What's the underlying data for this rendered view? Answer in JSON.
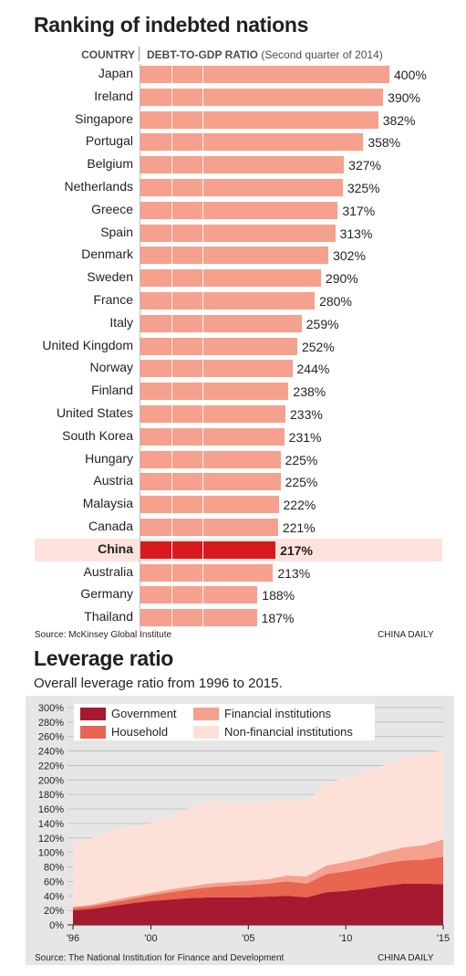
{
  "chart_data": [
    {
      "type": "bar",
      "title": "Ranking of indebted nations",
      "column_headers": {
        "country": "COUNTRY",
        "ratio_bold": "DEBT-TO-GDP RATIO",
        "ratio_note": "(Second quarter of 2014)"
      },
      "categories": [
        "Japan",
        "Ireland",
        "Singapore",
        "Portugal",
        "Belgium",
        "Netherlands",
        "Greece",
        "Spain",
        "Denmark",
        "Sweden",
        "France",
        "Italy",
        "United Kingdom",
        "Norway",
        "Finland",
        "United States",
        "South Korea",
        "Hungary",
        "Austria",
        "Malaysia",
        "Canada",
        "China",
        "Australia",
        "Germany",
        "Thailand"
      ],
      "values": [
        400,
        390,
        382,
        358,
        327,
        325,
        317,
        313,
        302,
        290,
        280,
        259,
        252,
        244,
        238,
        233,
        231,
        225,
        225,
        222,
        221,
        217,
        213,
        188,
        187
      ],
      "value_labels": [
        "400%",
        "390%",
        "382%",
        "358%",
        "327%",
        "325%",
        "317%",
        "313%",
        "302%",
        "290%",
        "280%",
        "259%",
        "252%",
        "244%",
        "238%",
        "233%",
        "231%",
        "225%",
        "225%",
        "222%",
        "221%",
        "217%",
        "213%",
        "188%",
        "187%"
      ],
      "highlight": "China",
      "source": "Source: McKinsey Global Institute",
      "credit": "CHINA DAILY",
      "colors": {
        "bar": "#f6a08e",
        "highlight_bar": "#d71920",
        "highlight_row": "#fde3dc"
      }
    },
    {
      "type": "area",
      "title": "Leverage ratio",
      "subtitle": "Overall leverage ratio from 1996 to 2015.",
      "x": [
        1996,
        1997,
        1998,
        1999,
        2000,
        2001,
        2002,
        2003,
        2004,
        2005,
        2006,
        2007,
        2008,
        2009,
        2010,
        2011,
        2012,
        2013,
        2014,
        2015
      ],
      "x_tick_labels": [
        "'96",
        "'00",
        "'05",
        "'10",
        "'15"
      ],
      "x_tick_values": [
        1996,
        2000,
        2005,
        2010,
        2015
      ],
      "y_tick_labels": [
        "0%",
        "20%",
        "40%",
        "60%",
        "80%",
        "100%",
        "120%",
        "140%",
        "160%",
        "180%",
        "200%",
        "220%",
        "240%",
        "260%",
        "280%",
        "300%"
      ],
      "ylim": [
        0,
        300
      ],
      "stacking": "stacked",
      "series": [
        {
          "name": "Government",
          "color": "#a6192e",
          "values": [
            20,
            22,
            26,
            30,
            33,
            35,
            37,
            38,
            38,
            38,
            39,
            40,
            38,
            45,
            47,
            50,
            54,
            57,
            57,
            56
          ]
        },
        {
          "name": "Household",
          "color": "#e8654f",
          "values": [
            3,
            4,
            5,
            6,
            8,
            10,
            12,
            14,
            16,
            17,
            18,
            20,
            19,
            25,
            27,
            29,
            31,
            32,
            33,
            38
          ]
        },
        {
          "name": "Financial institutions",
          "color": "#f6a08e",
          "values": [
            2,
            2,
            3,
            3,
            3,
            4,
            4,
            5,
            5,
            6,
            6,
            8,
            10,
            12,
            13,
            14,
            16,
            18,
            20,
            24
          ]
        },
        {
          "name": "Non-financial institutions",
          "color": "#fde1d8",
          "values": [
            85,
            92,
            96,
            98,
            96,
            100,
            108,
            115,
            110,
            107,
            108,
            105,
            103,
            115,
            115,
            117,
            120,
            123,
            125,
            124
          ]
        }
      ],
      "source": "Source: The National Institution for Finance and Development",
      "credit": "CHINA DAILY"
    }
  ]
}
